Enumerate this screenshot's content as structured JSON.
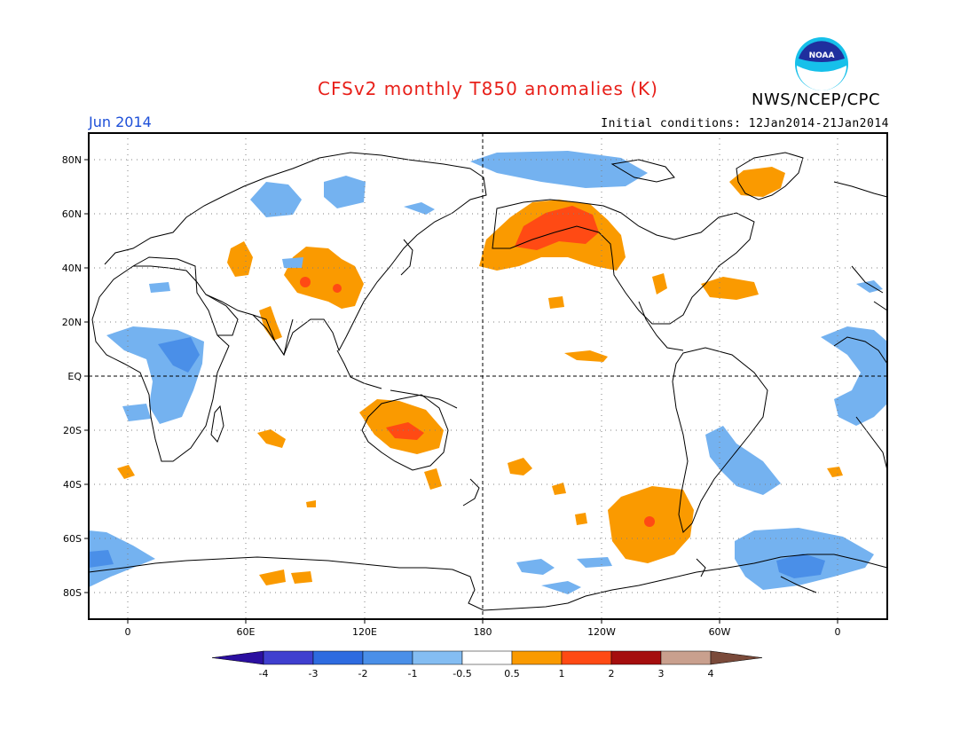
{
  "header": {
    "title": "CFSv2 monthly T850 anomalies (K)",
    "agency": "NWS/NCEP/CPC",
    "logo_text": "NOAA",
    "month": "Jun 2014",
    "initial_conditions": "Initial conditions: 12Jan2014-21Jan2014"
  },
  "axes": {
    "lat_labels": [
      "80N",
      "60N",
      "40N",
      "20N",
      "EQ",
      "20S",
      "40S",
      "60S",
      "80S"
    ],
    "lon_labels": [
      "0",
      "60E",
      "120E",
      "180",
      "120W",
      "60W",
      "0"
    ]
  },
  "colorbar": {
    "labels": [
      "-4",
      "-3",
      "-2",
      "-1",
      "-0.5",
      "0.5",
      "1",
      "2",
      "3",
      "4"
    ],
    "colors": [
      "#2b0fa0",
      "#3f3fcf",
      "#2e6be0",
      "#4a8fe8",
      "#84bdf2",
      "#ffffff",
      "#fa9a00",
      "#ff4a14",
      "#a50e0e",
      "#c9a08e",
      "#7a4a3a"
    ]
  },
  "colors": {
    "warm_1": "#fa9a00",
    "warm_2": "#ff4a14",
    "cool_1": "#74b2f0",
    "cool_2": "#4a8fe8"
  }
}
